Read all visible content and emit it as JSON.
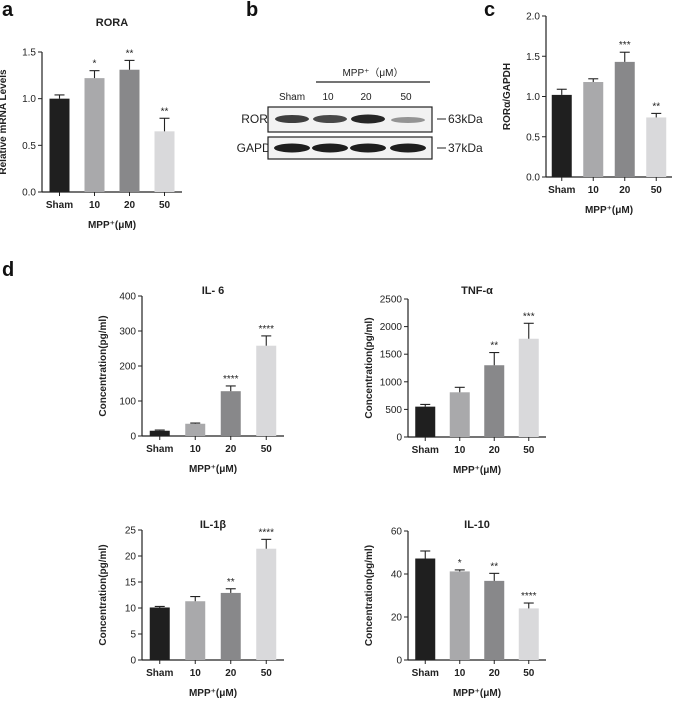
{
  "panels": {
    "a": "a",
    "b": "b",
    "c": "c",
    "d": "d"
  },
  "colors": {
    "sham": "#1f1f1f",
    "c10": "#a9a9ab",
    "c20": "#88888a",
    "c50": "#d9d9db",
    "axis": "#222222"
  },
  "blot": {
    "treatment_label": "MPP⁺（μM）",
    "lanes": [
      "Sham",
      "10",
      "20",
      "50"
    ],
    "rows": [
      {
        "label": "RORα",
        "marker": "63kDa"
      },
      {
        "label": "GAPDH",
        "marker": "37kDa"
      }
    ]
  },
  "chart_data": [
    {
      "type": "bar",
      "title": "RORA",
      "ylabel": "Relative mRNA Levels",
      "xlabel": "MPP⁺(μM)",
      "categories": [
        "Sham",
        "10",
        "20",
        "50"
      ],
      "values": [
        1.0,
        1.22,
        1.31,
        0.65
      ],
      "errors": [
        0.04,
        0.08,
        0.1,
        0.14
      ],
      "significance": [
        "",
        "*",
        "**",
        "**"
      ],
      "ylim": [
        0,
        1.5
      ],
      "yticks": [
        "0.0",
        "0.5",
        "1.0",
        "1.5"
      ]
    },
    {
      "type": "bar",
      "title": "",
      "ylabel": "RORα/GAPDH",
      "xlabel": "MPP⁺(μM)",
      "categories": [
        "Sham",
        "10",
        "20",
        "50"
      ],
      "values": [
        1.02,
        1.18,
        1.43,
        0.74
      ],
      "errors": [
        0.07,
        0.04,
        0.12,
        0.05
      ],
      "significance": [
        "",
        "",
        "***",
        "**"
      ],
      "ylim": [
        0,
        2.0
      ],
      "yticks": [
        "0.0",
        "0.5",
        "1.0",
        "1.5",
        "2.0"
      ]
    },
    {
      "type": "bar",
      "title": "IL- 6",
      "ylabel": "Concentration(pg/ml)",
      "xlabel": "MPP⁺(μM)",
      "categories": [
        "Sham",
        "10",
        "20",
        "50"
      ],
      "values": [
        15,
        35,
        128,
        258
      ],
      "errors": [
        2,
        2,
        15,
        28
      ],
      "significance": [
        "",
        "",
        "****",
        "****"
      ],
      "ylim": [
        0,
        400
      ],
      "yticks": [
        "0",
        "100",
        "200",
        "300",
        "400"
      ]
    },
    {
      "type": "bar",
      "title": "TNF-α",
      "ylabel": "Concentration(pg/ml)",
      "xlabel": "MPP⁺(μM)",
      "categories": [
        "Sham",
        "10",
        "20",
        "50"
      ],
      "values": [
        550,
        810,
        1300,
        1780
      ],
      "errors": [
        40,
        90,
        230,
        280
      ],
      "significance": [
        "",
        "",
        "**",
        "***"
      ],
      "ylim": [
        0,
        2500
      ],
      "yticks": [
        "0",
        "500",
        "1000",
        "1500",
        "2000",
        "2500"
      ]
    },
    {
      "type": "bar",
      "title": "IL-1β",
      "ylabel": "Concentration(pg/ml)",
      "xlabel": "MPP⁺(μM)",
      "categories": [
        "Sham",
        "10",
        "20",
        "50"
      ],
      "values": [
        10.1,
        11.3,
        12.9,
        21.4
      ],
      "errors": [
        0.2,
        0.9,
        0.8,
        1.8
      ],
      "significance": [
        "",
        "",
        "**",
        "****"
      ],
      "ylim": [
        0,
        25
      ],
      "yticks": [
        "0",
        "5",
        "10",
        "15",
        "20",
        "25"
      ]
    },
    {
      "type": "bar",
      "title": "IL-10",
      "ylabel": "Concentration(pg/ml)",
      "xlabel": "MPP⁺(μM)",
      "categories": [
        "Sham",
        "10",
        "20",
        "50"
      ],
      "values": [
        47.2,
        41.2,
        36.8,
        24.0
      ],
      "errors": [
        3.5,
        0.7,
        3.5,
        2.5
      ],
      "significance": [
        "",
        "*",
        "**",
        "****"
      ],
      "ylim": [
        0,
        60
      ],
      "yticks": [
        "0",
        "20",
        "40",
        "60"
      ]
    }
  ]
}
